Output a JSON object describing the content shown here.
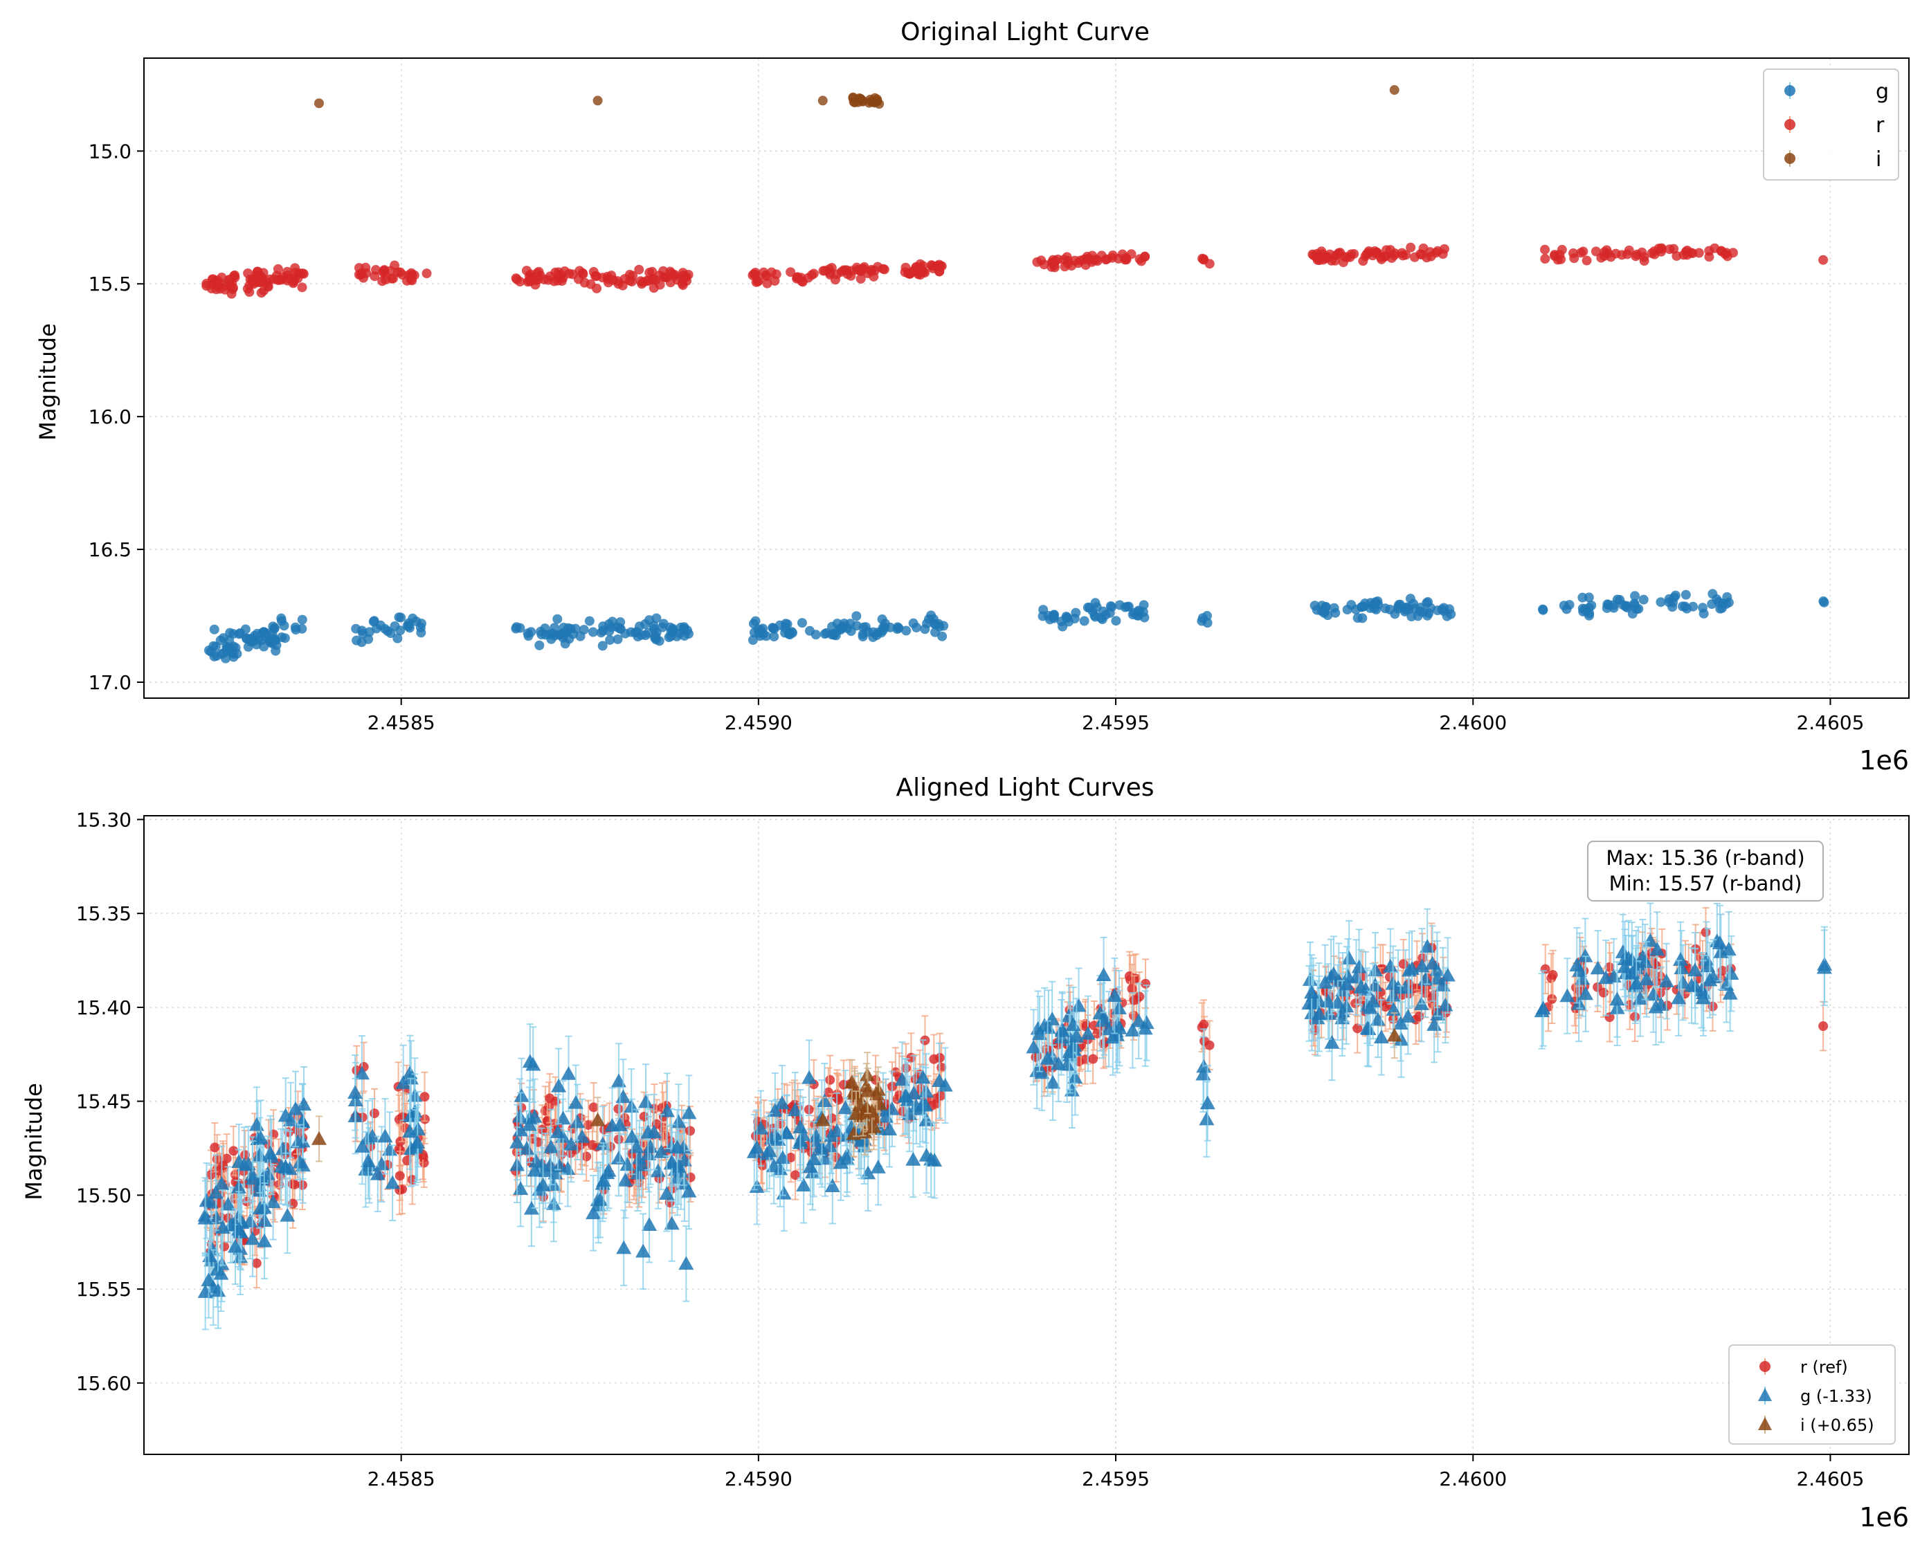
{
  "colors": {
    "g": "#1f77b4",
    "r": "#d62728",
    "i": "#8b4513",
    "g_err": "#87ceeb",
    "r_err": "#f4a582",
    "i_err": "#d2b48c",
    "grid": "#d9d9d9"
  },
  "chart_data": [
    {
      "type": "scatter",
      "title": "Original Light Curve",
      "xlabel": "",
      "ylabel": "Magnitude",
      "x_offset_label": "1e6",
      "xlim": [
        2458140,
        2460610
      ],
      "ylim": [
        17.06,
        14.65
      ],
      "y_inverted": true,
      "xticks": [
        2458500,
        2459000,
        2459500,
        2460000,
        2460500
      ],
      "xtick_labels": [
        "2.4585",
        "2.4590",
        "2.4595",
        "2.4600",
        "2.4605"
      ],
      "yticks": [
        15.0,
        15.5,
        16.0,
        16.5,
        17.0
      ],
      "ytick_labels": [
        "15.0",
        "15.5",
        "16.0",
        "16.5",
        "17.0"
      ],
      "grid": true,
      "legend": {
        "position": "top-right",
        "entries": [
          "g",
          "r",
          "i"
        ]
      },
      "series": [
        {
          "name": "g",
          "marker": "circle",
          "color": "g",
          "clusters": [
            {
              "x0": 2458225,
              "x1": 2458365,
              "y0": 16.87,
              "y1": 16.8,
              "spread": 0.05,
              "n": 70
            },
            {
              "x0": 2458435,
              "x1": 2458530,
              "y0": 16.82,
              "y1": 16.78,
              "spread": 0.035,
              "n": 28
            },
            {
              "x0": 2458660,
              "x1": 2458905,
              "y0": 16.82,
              "y1": 16.8,
              "spread": 0.04,
              "n": 85
            },
            {
              "x0": 2458990,
              "x1": 2459265,
              "y0": 16.81,
              "y1": 16.79,
              "spread": 0.035,
              "n": 80
            },
            {
              "x0": 2459385,
              "x1": 2459545,
              "y0": 16.76,
              "y1": 16.73,
              "spread": 0.03,
              "n": 45
            },
            {
              "x0": 2459620,
              "x1": 2459630,
              "y0": 16.77,
              "y1": 16.77,
              "spread": 0.015,
              "n": 4
            },
            {
              "x0": 2459770,
              "x1": 2459970,
              "y0": 16.73,
              "y1": 16.72,
              "spread": 0.03,
              "n": 60
            },
            {
              "x0": 2460090,
              "x1": 2460100,
              "y0": 16.73,
              "y1": 16.73,
              "spread": 0.01,
              "n": 2
            },
            {
              "x0": 2460120,
              "x1": 2460365,
              "y0": 16.72,
              "y1": 16.7,
              "spread": 0.03,
              "n": 55
            },
            {
              "x0": 2460490,
              "x1": 2460492,
              "y0": 16.7,
              "y1": 16.7,
              "spread": 0.01,
              "n": 2
            }
          ]
        },
        {
          "name": "r",
          "marker": "circle",
          "color": "r",
          "clusters": [
            {
              "x0": 2458225,
              "x1": 2458365,
              "y0": 15.5,
              "y1": 15.48,
              "spread": 0.035,
              "n": 75
            },
            {
              "x0": 2458435,
              "x1": 2458540,
              "y0": 15.46,
              "y1": 15.46,
              "spread": 0.025,
              "n": 30
            },
            {
              "x0": 2458660,
              "x1": 2458905,
              "y0": 15.47,
              "y1": 15.48,
              "spread": 0.03,
              "n": 90
            },
            {
              "x0": 2458990,
              "x1": 2459265,
              "y0": 15.47,
              "y1": 15.44,
              "spread": 0.025,
              "n": 85
            },
            {
              "x0": 2459385,
              "x1": 2459545,
              "y0": 15.43,
              "y1": 15.39,
              "spread": 0.02,
              "n": 45
            },
            {
              "x0": 2459620,
              "x1": 2459632,
              "y0": 15.4,
              "y1": 15.42,
              "spread": 0.01,
              "n": 4
            },
            {
              "x0": 2459770,
              "x1": 2459970,
              "y0": 15.4,
              "y1": 15.38,
              "spread": 0.02,
              "n": 60
            },
            {
              "x0": 2460100,
              "x1": 2460365,
              "y0": 15.39,
              "y1": 15.38,
              "spread": 0.02,
              "n": 55
            },
            {
              "x0": 2460490,
              "x1": 2460490,
              "y0": 15.41,
              "y1": 15.41,
              "spread": 0.0,
              "n": 1
            }
          ]
        },
        {
          "name": "i",
          "marker": "circle",
          "color": "i",
          "clusters": [
            {
              "x0": 2458385,
              "x1": 2458385,
              "y0": 14.82,
              "y1": 14.82,
              "spread": 0.0,
              "n": 1
            },
            {
              "x0": 2458775,
              "x1": 2458775,
              "y0": 14.81,
              "y1": 14.81,
              "spread": 0.0,
              "n": 1
            },
            {
              "x0": 2459090,
              "x1": 2459090,
              "y0": 14.81,
              "y1": 14.81,
              "spread": 0.0,
              "n": 1
            },
            {
              "x0": 2459130,
              "x1": 2459170,
              "y0": 14.81,
              "y1": 14.81,
              "spread": 0.018,
              "n": 22
            },
            {
              "x0": 2459890,
              "x1": 2459890,
              "y0": 14.77,
              "y1": 14.77,
              "spread": 0.0,
              "n": 1
            }
          ]
        }
      ]
    },
    {
      "type": "scatter",
      "title": "Aligned Light Curves",
      "xlabel": "",
      "ylabel": "Magnitude",
      "x_offset_label": "1e6",
      "xlim": [
        2458140,
        2460610
      ],
      "ylim": [
        15.638,
        15.298
      ],
      "y_inverted": true,
      "xticks": [
        2458500,
        2459000,
        2459500,
        2460000,
        2460500
      ],
      "xtick_labels": [
        "2.4585",
        "2.4590",
        "2.4595",
        "2.4600",
        "2.4605"
      ],
      "yticks": [
        15.3,
        15.35,
        15.4,
        15.45,
        15.5,
        15.55,
        15.6
      ],
      "ytick_labels": [
        "15.30",
        "15.35",
        "15.40",
        "15.45",
        "15.50",
        "15.55",
        "15.60"
      ],
      "grid": true,
      "legend": {
        "position": "bottom-right",
        "entries": [
          "r (ref)",
          "g (-1.33)",
          "i (+0.65)"
        ]
      },
      "annotation": {
        "lines": [
          "Max: 15.36 (r-band)",
          "Min: 15.57 (r-band)"
        ],
        "position": "top-right"
      },
      "series": [
        {
          "name": "r (ref)",
          "marker": "circle",
          "color": "r",
          "err_color": "r_err",
          "error": 0.013,
          "clusters": [
            {
              "x0": 2458225,
              "x1": 2458365,
              "y0": 15.51,
              "y1": 15.48,
              "spread": 0.03,
              "n": 75
            },
            {
              "x0": 2458435,
              "x1": 2458540,
              "y0": 15.46,
              "y1": 15.47,
              "spread": 0.025,
              "n": 30
            },
            {
              "x0": 2458660,
              "x1": 2458905,
              "y0": 15.47,
              "y1": 15.48,
              "spread": 0.025,
              "n": 90
            },
            {
              "x0": 2458990,
              "x1": 2459265,
              "y0": 15.47,
              "y1": 15.44,
              "spread": 0.022,
              "n": 85
            },
            {
              "x0": 2459385,
              "x1": 2459545,
              "y0": 15.43,
              "y1": 15.39,
              "spread": 0.015,
              "n": 45
            },
            {
              "x0": 2459620,
              "x1": 2459632,
              "y0": 15.41,
              "y1": 15.42,
              "spread": 0.01,
              "n": 4
            },
            {
              "x0": 2459770,
              "x1": 2459970,
              "y0": 15.4,
              "y1": 15.39,
              "spread": 0.018,
              "n": 60
            },
            {
              "x0": 2460100,
              "x1": 2460365,
              "y0": 15.39,
              "y1": 15.38,
              "spread": 0.015,
              "n": 55
            },
            {
              "x0": 2460490,
              "x1": 2460490,
              "y0": 15.41,
              "y1": 15.41,
              "spread": 0.0,
              "n": 1
            }
          ]
        },
        {
          "name": "g (-1.33)",
          "marker": "triangle",
          "color": "g",
          "err_color": "g_err",
          "error": 0.02,
          "clusters": [
            {
              "x0": 2458225,
              "x1": 2458365,
              "y0": 15.53,
              "y1": 15.47,
              "spread": 0.035,
              "n": 70
            },
            {
              "x0": 2458435,
              "x1": 2458530,
              "y0": 15.47,
              "y1": 15.46,
              "spread": 0.035,
              "n": 28
            },
            {
              "x0": 2458660,
              "x1": 2458905,
              "y0": 15.47,
              "y1": 15.49,
              "spread": 0.035,
              "n": 85
            },
            {
              "x0": 2458990,
              "x1": 2459265,
              "y0": 15.47,
              "y1": 15.46,
              "spread": 0.025,
              "n": 80
            },
            {
              "x0": 2459385,
              "x1": 2459545,
              "y0": 15.43,
              "y1": 15.4,
              "spread": 0.02,
              "n": 45
            },
            {
              "x0": 2459620,
              "x1": 2459630,
              "y0": 15.44,
              "y1": 15.45,
              "spread": 0.012,
              "n": 4
            },
            {
              "x0": 2459770,
              "x1": 2459970,
              "y0": 15.4,
              "y1": 15.39,
              "spread": 0.02,
              "n": 60
            },
            {
              "x0": 2460090,
              "x1": 2460100,
              "y0": 15.4,
              "y1": 15.4,
              "spread": 0.005,
              "n": 2
            },
            {
              "x0": 2460120,
              "x1": 2460365,
              "y0": 15.39,
              "y1": 15.38,
              "spread": 0.018,
              "n": 55
            },
            {
              "x0": 2460490,
              "x1": 2460492,
              "y0": 15.37,
              "y1": 15.38,
              "spread": 0.01,
              "n": 2
            }
          ]
        },
        {
          "name": "i (+0.65)",
          "marker": "triangle",
          "color": "i",
          "err_color": "i_err",
          "error": 0.012,
          "clusters": [
            {
              "x0": 2458385,
              "x1": 2458385,
              "y0": 15.47,
              "y1": 15.47,
              "spread": 0.0,
              "n": 1
            },
            {
              "x0": 2458775,
              "x1": 2458775,
              "y0": 15.46,
              "y1": 15.46,
              "spread": 0.0,
              "n": 1
            },
            {
              "x0": 2459090,
              "x1": 2459090,
              "y0": 15.46,
              "y1": 15.46,
              "spread": 0.0,
              "n": 1
            },
            {
              "x0": 2459130,
              "x1": 2459170,
              "y0": 15.455,
              "y1": 15.455,
              "spread": 0.015,
              "n": 22
            },
            {
              "x0": 2459890,
              "x1": 2459890,
              "y0": 15.415,
              "y1": 15.415,
              "spread": 0.0,
              "n": 1
            }
          ]
        }
      ]
    }
  ]
}
